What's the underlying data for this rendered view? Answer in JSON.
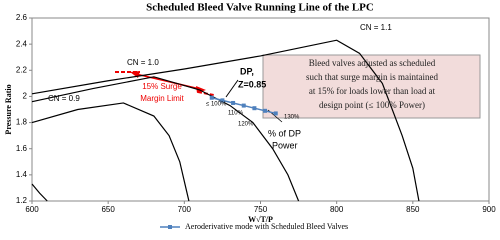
{
  "chart_data": {
    "type": "line",
    "title": "Scheduled Bleed Valve Running Line of the LPC",
    "x_label": "W√T/P",
    "y_label": "Pressure Ratio",
    "xlim": [
      600,
      900
    ],
    "ylim": [
      1.2,
      2.6
    ],
    "xticks": [
      600,
      650,
      700,
      750,
      800,
      850,
      900
    ],
    "yticks": [
      1.2,
      1.4,
      1.6,
      1.8,
      2,
      2.2,
      2.4,
      2.6
    ],
    "grid": false,
    "legend": "bottom",
    "series": [
      {
        "color": "#000000",
        "x": [
          600,
          650,
          700,
          750,
          800,
          815,
          830,
          843,
          850,
          854
        ],
        "values": [
          2.02,
          2.12,
          2.21,
          2.31,
          2.43,
          2.33,
          2.1,
          1.7,
          1.45,
          1.2
        ]
      },
      {
        "color": "#000000",
        "x": [
          600,
          640,
          680,
          710,
          730,
          745,
          758,
          768,
          775
        ],
        "values": [
          1.96,
          2.06,
          2.15,
          2.05,
          1.93,
          1.8,
          1.6,
          1.4,
          1.2
        ]
      },
      {
        "color": "#000000",
        "x": [
          600,
          630,
          660,
          680,
          690,
          697,
          701,
          703
        ],
        "values": [
          1.8,
          1.9,
          1.95,
          1.85,
          1.7,
          1.5,
          1.3,
          1.2
        ]
      },
      {
        "color": "#000000",
        "x": [
          600,
          605,
          610
        ],
        "values": [
          1.33,
          1.26,
          1.2
        ]
      },
      {
        "name": "Aeroderivative mode with Scheduled Bleed Valves",
        "color": "#4f81bd",
        "x": [
          718,
          725,
          732,
          739,
          746,
          753,
          760
        ],
        "values": [
          1.99,
          1.97,
          1.95,
          1.93,
          1.91,
          1.89,
          1.87
        ]
      }
    ],
    "annotations": [
      "CN = 1.1",
      "CN = 1.0",
      "CN = 0.9",
      "15% Surge",
      "Margin Limit",
      "DP,",
      "Z=0.85",
      "≤ 100%",
      "110%",
      "120%",
      "130%",
      "% of DP",
      "Power"
    ],
    "note": [
      "Bleed valves adjusted as scheduled",
      "such that surge margin is maintained",
      "at 15% for loads lower than load at",
      "design point (≤ 100% Power)"
    ]
  }
}
